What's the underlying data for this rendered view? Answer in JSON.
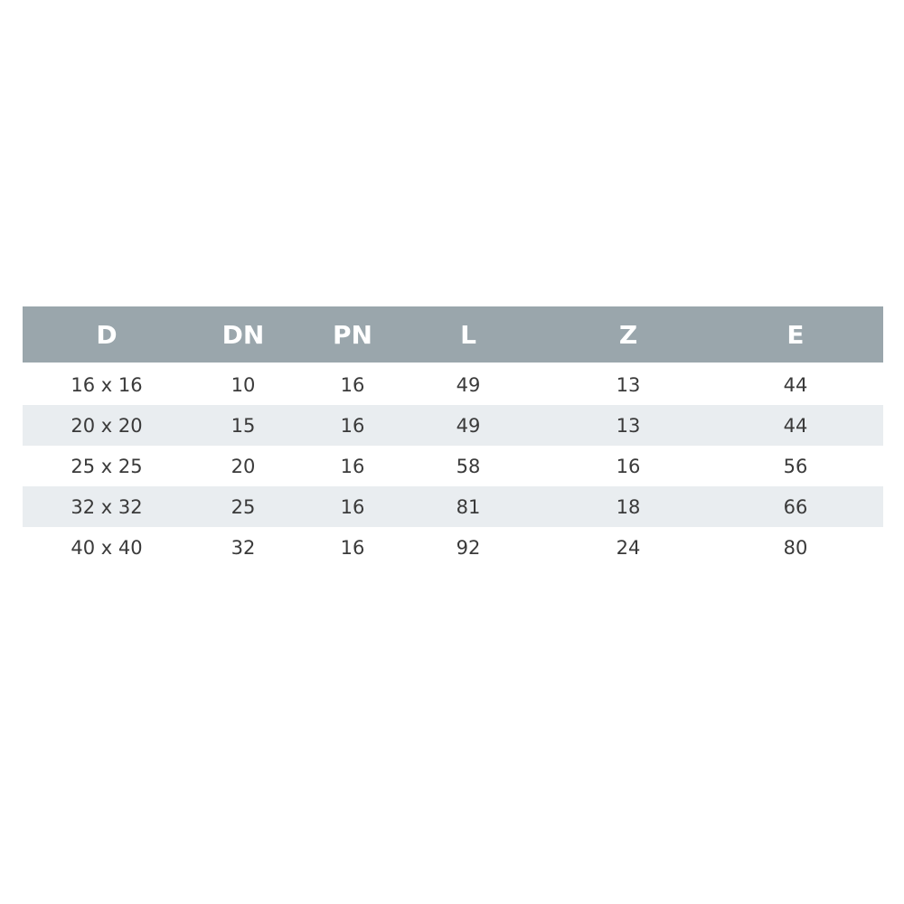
{
  "colors": {
    "header_bg": "#9aa6ac",
    "alt_row_bg": "#e9edf0",
    "header_text": "#ffffff",
    "body_text": "#3a3a3a"
  },
  "table": {
    "headers": [
      "D",
      "DN",
      "PN",
      "L",
      "Z",
      "E"
    ],
    "rows": [
      [
        "16 x 16",
        "10",
        "16",
        "49",
        "13",
        "44"
      ],
      [
        "20 x 20",
        "15",
        "16",
        "49",
        "13",
        "44"
      ],
      [
        "25 x 25",
        "20",
        "16",
        "58",
        "16",
        "56"
      ],
      [
        "32 x 32",
        "25",
        "16",
        "81",
        "18",
        "66"
      ],
      [
        "40 x 40",
        "32",
        "16",
        "92",
        "24",
        "80"
      ]
    ]
  }
}
